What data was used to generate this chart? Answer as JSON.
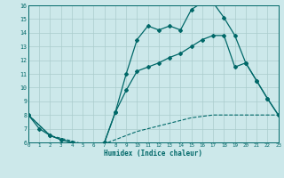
{
  "bg_color": "#cce8ea",
  "grid_color": "#aacccc",
  "line_color": "#006868",
  "xlabel": "Humidex (Indice chaleur)",
  "xlim": [
    0,
    23
  ],
  "ylim": [
    6,
    16
  ],
  "xticks": [
    0,
    1,
    2,
    3,
    4,
    5,
    6,
    7,
    8,
    9,
    10,
    11,
    12,
    13,
    14,
    15,
    16,
    17,
    18,
    19,
    20,
    21,
    22,
    23
  ],
  "yticks": [
    6,
    7,
    8,
    9,
    10,
    11,
    12,
    13,
    14,
    15,
    16
  ],
  "curve1_x": [
    0,
    1,
    2,
    3,
    4,
    5,
    6,
    7,
    8,
    9,
    10,
    11,
    12,
    13,
    14,
    15,
    16,
    17,
    18,
    19,
    20,
    21,
    22,
    23
  ],
  "curve1_y": [
    8.0,
    7.0,
    6.5,
    6.2,
    6.0,
    5.8,
    5.8,
    6.0,
    8.2,
    11.0,
    13.5,
    14.5,
    14.2,
    14.5,
    14.2,
    15.7,
    16.2,
    16.2,
    15.1,
    13.8,
    11.8,
    10.5,
    9.2,
    8.0
  ],
  "curve2_x": [
    0,
    2,
    3,
    4,
    5,
    6,
    7,
    8,
    9,
    10,
    11,
    12,
    13,
    14,
    15,
    16,
    17,
    18,
    19,
    20,
    21,
    22,
    23
  ],
  "curve2_y": [
    8.0,
    6.5,
    6.2,
    6.0,
    5.8,
    5.8,
    6.0,
    8.2,
    9.8,
    11.2,
    11.5,
    11.8,
    12.2,
    12.5,
    13.0,
    13.5,
    13.8,
    13.8,
    11.5,
    11.8,
    10.5,
    9.2,
    8.0
  ],
  "curve3_x": [
    0,
    2,
    3,
    4,
    5,
    6,
    7,
    8,
    9,
    10,
    11,
    12,
    13,
    14,
    15,
    16,
    17,
    18,
    19,
    20,
    21,
    22,
    23
  ],
  "curve3_y": [
    8.0,
    6.5,
    6.3,
    6.1,
    5.9,
    5.8,
    5.9,
    6.2,
    6.5,
    6.8,
    7.0,
    7.2,
    7.4,
    7.6,
    7.8,
    7.9,
    8.0,
    8.0,
    8.0,
    8.0,
    8.0,
    8.0,
    8.0
  ]
}
